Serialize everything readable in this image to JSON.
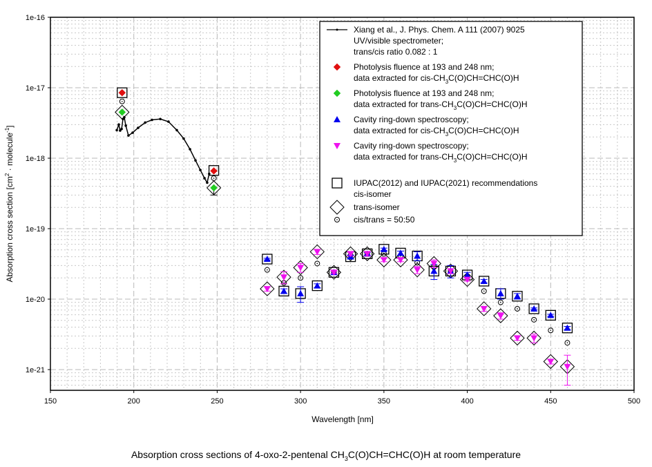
{
  "chart_data": {
    "type": "scatter",
    "title": "",
    "caption": {
      "prefix": "Absorption cross sections of  4-oxo-2-pentenal CH",
      "sub": "3",
      "suffix": "C(O)CH=CHC(O)H at room temperature"
    },
    "xlabel": "Wavelength [nm]",
    "ylabel": {
      "main": "Absorption cross section [cm",
      "sup1": "2",
      "mid": " · molecule",
      "sup2": "-1",
      "end": "]"
    },
    "xlim": [
      150,
      500
    ],
    "ylim": [
      5e-22,
      1e-16
    ],
    "yscale": "log",
    "x_ticks": [
      150,
      200,
      250,
      300,
      350,
      400,
      450,
      500
    ],
    "y_ticks": [
      "1e-16",
      "1e-17",
      "1e-18",
      "1e-19",
      "1e-20",
      "1e-21"
    ],
    "grid": true,
    "legend_position": "top-right",
    "legend": [
      {
        "id": "xiang",
        "lines": [
          "Xiang et al., J. Phys. Chem. A 111 (2007) 9025",
          "UV/visible spectrometer;",
          "trans/cis ratio 0.082 : 1"
        ]
      },
      {
        "id": "photo_cis",
        "lines": [
          "Photolysis fluence at 193 and 248 nm;",
          "data extracted for cis-CH|3|C(O)CH=CHC(O)H"
        ]
      },
      {
        "id": "photo_trans",
        "lines": [
          "Photolysis fluence at 193 and 248 nm;",
          "data extracted for trans-CH|3|C(O)CH=CHC(O)H"
        ]
      },
      {
        "id": "crds_cis",
        "lines": [
          "Cavity ring-down spectroscopy;",
          "data extracted for cis-CH|3|C(O)CH=CHC(O)H"
        ]
      },
      {
        "id": "crds_trans",
        "lines": [
          "Cavity ring-down spectroscopy;",
          "data extracted for trans-CH|3|C(O)CH=CHC(O)H"
        ]
      },
      {
        "id": "iupac_cis",
        "lines": [
          "IUPAC(2012) and IUPAC(2021) recommendations",
          "cis-isomer"
        ]
      },
      {
        "id": "iupac_trans",
        "lines": [
          "trans-isomer"
        ]
      },
      {
        "id": "iupac_mix",
        "lines": [
          "cis/trans = 50:50"
        ]
      }
    ],
    "series": [
      {
        "name": "Xiang et al., J. Phys. Chem. A 111 (2007) 9025",
        "marker": "line-dot",
        "color": "#000000",
        "x": [
          189.8,
          191.0,
          191.8,
          192.7,
          193.5,
          194.3,
          195.2,
          196.8,
          199.3,
          202.6,
          206.8,
          210.9,
          215.9,
          220.8,
          225.8,
          229.9,
          233.7,
          237.0,
          239.9,
          242.4,
          244.0,
          245.2
        ],
        "y": [
          2.5e-18,
          3e-18,
          2.47e-18,
          2.6e-18,
          3.6e-18,
          3.8e-18,
          2.9e-18,
          2.1e-18,
          2.3e-18,
          2.7e-18,
          3.2e-18,
          3.5e-18,
          3.6e-18,
          3.3e-18,
          2.5e-18,
          1.9e-18,
          1.34e-18,
          9.3e-19,
          6.8e-19,
          5.2e-19,
          4.5e-19,
          6e-19
        ]
      },
      {
        "name": "Photolysis cis",
        "marker": "diamond-filled",
        "color": "#e01010",
        "x": [
          193,
          248
        ],
        "y": [
          8.5e-18,
          6.6e-19
        ]
      },
      {
        "name": "Photolysis trans",
        "marker": "diamond-filled",
        "color": "#22cc22",
        "x": [
          193,
          248
        ],
        "y": [
          4.5e-18,
          3.8e-19
        ],
        "error_low": [
          null,
          3e-19
        ]
      },
      {
        "name": "CRDS cis",
        "marker": "triangle-up",
        "color": "#0000ee",
        "x": [
          280,
          290,
          300,
          310,
          320,
          330,
          340,
          350,
          360,
          370,
          380,
          390,
          400,
          410,
          420,
          430,
          440,
          450,
          460
        ],
        "y": [
          3.7e-20,
          1.3e-20,
          1.2e-20,
          1.55e-20,
          2.4e-20,
          4e-20,
          4.4e-20,
          5.1e-20,
          4.5e-20,
          4.1e-20,
          2.5e-20,
          2.5e-20,
          2.2e-20,
          1.8e-20,
          1.2e-20,
          1.1e-20,
          7.3e-21,
          5.9e-21,
          3.9e-21
        ],
        "error": [
          1e-21,
          1e-21,
          3e-21,
          1e-21,
          1e-21,
          2e-21,
          2e-21,
          2e-21,
          3e-21,
          6e-21,
          6e-21,
          5e-21,
          2e-21,
          1e-21,
          2e-21,
          1e-21,
          2e-22,
          2e-22,
          2e-22
        ]
      },
      {
        "name": "CRDS trans",
        "marker": "triangle-down",
        "color": "#ee11ee",
        "x": [
          280,
          290,
          300,
          310,
          320,
          330,
          340,
          350,
          360,
          370,
          380,
          390,
          400,
          410,
          420,
          430,
          440,
          450,
          460
        ],
        "y": [
          1.4e-20,
          2.05e-20,
          2.8e-20,
          4.7e-20,
          2.4e-20,
          4.4e-20,
          4.4e-20,
          3.6e-20,
          3.6e-20,
          2.6e-20,
          3.2e-20,
          2.5e-20,
          1.9e-20,
          7.3e-21,
          5.8e-21,
          2.8e-21,
          2.8e-21,
          1.3e-21,
          1.1e-21
        ],
        "error": [
          1e-21,
          4e-21,
          4e-21,
          4e-21,
          1e-21,
          3e-21,
          3e-21,
          2e-21,
          2e-21,
          3e-21,
          4e-21,
          2e-21,
          1e-21,
          6e-22,
          6e-22,
          2e-22,
          4e-22,
          1e-22,
          5e-22
        ]
      },
      {
        "name": "IUPAC cis-isomer",
        "marker": "square-open",
        "color": "#000000",
        "x": [
          193,
          248,
          280,
          290,
          300,
          310,
          320,
          330,
          340,
          350,
          360,
          370,
          380,
          390,
          400,
          410,
          420,
          430,
          440,
          450,
          460
        ],
        "y": [
          8.5e-18,
          6.7e-19,
          3.7e-20,
          1.3e-20,
          1.2e-20,
          1.55e-20,
          2.4e-20,
          4e-20,
          4.4e-20,
          5.1e-20,
          4.5e-20,
          4.1e-20,
          2.5e-20,
          2.5e-20,
          2.2e-20,
          1.8e-20,
          1.2e-20,
          1.1e-20,
          7.3e-21,
          5.9e-21,
          3.9e-21
        ]
      },
      {
        "name": "IUPAC trans-isomer",
        "marker": "diamond-open",
        "color": "#000000",
        "x": [
          193,
          248,
          280,
          290,
          300,
          310,
          320,
          330,
          340,
          350,
          360,
          370,
          380,
          390,
          400,
          410,
          420,
          430,
          440,
          450,
          460
        ],
        "y": [
          4.5e-18,
          3.8e-19,
          1.4e-20,
          2.05e-20,
          2.8e-20,
          4.7e-20,
          2.4e-20,
          4.4e-20,
          4.4e-20,
          3.6e-20,
          3.6e-20,
          2.6e-20,
          3.2e-20,
          2.5e-20,
          1.9e-20,
          7.3e-21,
          5.8e-21,
          2.8e-21,
          2.8e-21,
          1.3e-21,
          1.1e-21
        ]
      },
      {
        "name": "IUPAC cis/trans = 50:50",
        "marker": "circle-dot",
        "color": "#000000",
        "x": [
          193,
          248,
          280,
          290,
          300,
          310,
          320,
          330,
          340,
          350,
          360,
          370,
          380,
          390,
          400,
          410,
          420,
          430,
          440,
          450,
          460
        ],
        "y": [
          6.4e-18,
          5.2e-19,
          2.6e-20,
          1.7e-20,
          2e-20,
          3.2e-20,
          2.4e-20,
          4.2e-20,
          4.4e-20,
          4.4e-20,
          4.1e-20,
          3.3e-20,
          2.9e-20,
          2.5e-20,
          2.1e-20,
          1.3e-20,
          9e-21,
          7.3e-21,
          5.1e-21,
          3.6e-21,
          2.4e-21
        ]
      }
    ]
  }
}
